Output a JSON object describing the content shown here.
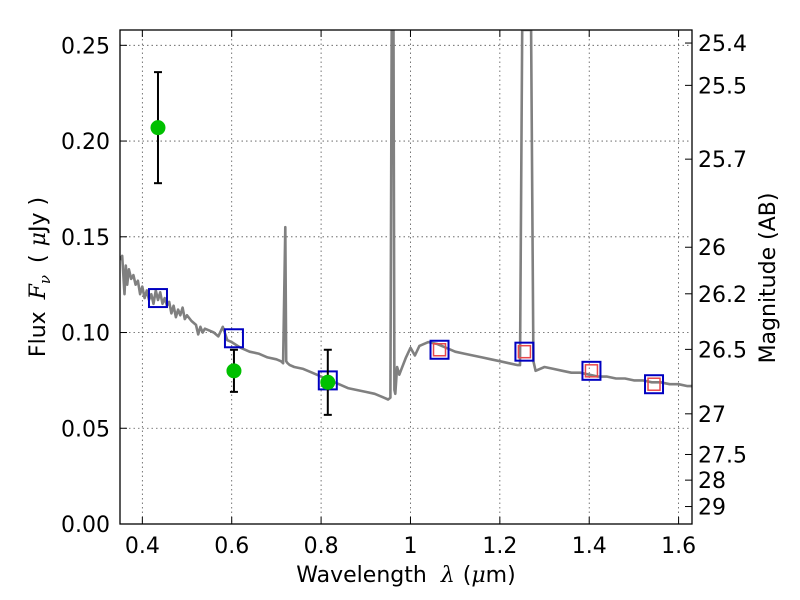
{
  "chart_data": {
    "type": "scatter",
    "title": "",
    "xlabel": {
      "text": "Wavelength",
      "symbol": "λ",
      "unit_open": "(",
      "unit_mu": "μ",
      "unit_rest": "m)"
    },
    "ylabel": {
      "text": "Flux",
      "symbol": "F",
      "subscript": "ν",
      "unit_open": "(",
      "unit_mu": "μ",
      "unit_rest": "Jy )"
    },
    "y2label": "Magnitude (AB)",
    "xlim": [
      0.35,
      1.63
    ],
    "ylim": [
      0.0,
      0.258
    ],
    "x_ticks": [
      0.4,
      0.6,
      0.8,
      1.0,
      1.2,
      1.4,
      1.6
    ],
    "x_tick_labels": [
      "0.4",
      "0.6",
      "0.8",
      "1",
      "1.2",
      "1.4",
      "1.6"
    ],
    "y_ticks": [
      0.0,
      0.05,
      0.1,
      0.15,
      0.2,
      0.25
    ],
    "y_tick_labels": [
      "0.00",
      "0.05",
      "0.10",
      "0.15",
      "0.20",
      "0.25"
    ],
    "y2_ticks": [
      25.4,
      25.5,
      25.7,
      26,
      26.2,
      26.5,
      27,
      27.5,
      28,
      29
    ],
    "y2_tick_labels": [
      "25.4",
      "25.5",
      "25.7",
      "26",
      "26.2",
      "26.5",
      "27",
      "27.5",
      "28",
      "29"
    ],
    "grid": true,
    "colors": {
      "model": "#808080",
      "observed": "#00c000",
      "errorbar": "#000000",
      "synthetic": "#0000c0",
      "synthetic_inner": "#e8484a",
      "axis": "#000000",
      "grid": "#555555"
    },
    "series": [
      {
        "type": "line",
        "x": [
          0.35,
          0.355,
          0.36,
          0.363,
          0.366,
          0.37,
          0.375,
          0.38,
          0.385,
          0.39,
          0.395,
          0.4,
          0.405,
          0.41,
          0.415,
          0.42,
          0.425,
          0.43,
          0.435,
          0.44,
          0.445,
          0.45,
          0.455,
          0.46,
          0.465,
          0.47,
          0.475,
          0.48,
          0.485,
          0.49,
          0.495,
          0.5,
          0.51,
          0.52,
          0.525,
          0.53,
          0.535,
          0.54,
          0.55,
          0.56,
          0.57,
          0.58,
          0.59,
          0.6,
          0.62,
          0.64,
          0.66,
          0.68,
          0.7,
          0.71,
          0.715,
          0.72,
          0.722,
          0.725,
          0.73,
          0.74,
          0.76,
          0.78,
          0.8,
          0.82,
          0.84,
          0.86,
          0.88,
          0.9,
          0.92,
          0.93,
          0.94,
          0.95,
          0.955,
          0.958,
          0.96,
          0.962,
          0.964,
          0.966,
          0.968,
          0.97,
          0.975,
          0.98,
          0.99,
          1.0,
          1.01,
          1.02,
          1.04,
          1.06,
          1.08,
          1.1,
          1.12,
          1.14,
          1.16,
          1.18,
          1.2,
          1.22,
          1.24,
          1.245,
          1.25,
          1.255,
          1.26,
          1.265,
          1.27,
          1.275,
          1.28,
          1.3,
          1.32,
          1.34,
          1.36,
          1.38,
          1.4,
          1.42,
          1.44,
          1.46,
          1.48,
          1.5,
          1.52,
          1.54,
          1.56,
          1.58,
          1.6,
          1.62,
          1.63
        ],
        "y": [
          0.138,
          0.14,
          0.12,
          0.135,
          0.125,
          0.133,
          0.128,
          0.13,
          0.125,
          0.127,
          0.12,
          0.124,
          0.118,
          0.122,
          0.117,
          0.12,
          0.115,
          0.122,
          0.117,
          0.121,
          0.115,
          0.118,
          0.114,
          0.116,
          0.11,
          0.114,
          0.108,
          0.112,
          0.109,
          0.113,
          0.107,
          0.109,
          0.106,
          0.104,
          0.099,
          0.103,
          0.1,
          0.102,
          0.101,
          0.1,
          0.098,
          0.103,
          0.096,
          0.095,
          0.092,
          0.09,
          0.089,
          0.087,
          0.086,
          0.085,
          0.084,
          0.155,
          0.085,
          0.084,
          0.083,
          0.082,
          0.081,
          0.079,
          0.077,
          0.075,
          0.073,
          0.071,
          0.07,
          0.069,
          0.068,
          0.067,
          0.066,
          0.065,
          0.066,
          0.258,
          0.258,
          0.258,
          0.07,
          0.068,
          0.075,
          0.082,
          0.078,
          0.081,
          0.087,
          0.092,
          0.088,
          0.093,
          0.095,
          0.094,
          0.092,
          0.09,
          0.089,
          0.088,
          0.087,
          0.086,
          0.085,
          0.084,
          0.083,
          0.083,
          0.258,
          0.258,
          0.258,
          0.258,
          0.258,
          0.085,
          0.08,
          0.082,
          0.081,
          0.08,
          0.079,
          0.079,
          0.078,
          0.077,
          0.077,
          0.076,
          0.076,
          0.075,
          0.075,
          0.074,
          0.074,
          0.073,
          0.073,
          0.072,
          0.072
        ]
      },
      {
        "type": "errorbar",
        "x": [
          0.435,
          0.605,
          0.815
        ],
        "y": [
          0.207,
          0.08,
          0.074
        ],
        "yerr": [
          0.029,
          0.011,
          0.017
        ]
      },
      {
        "type": "scatter",
        "x": [
          0.435,
          0.605,
          0.815,
          1.065,
          1.255,
          1.405,
          1.545
        ],
        "y": [
          0.118,
          0.097,
          0.075,
          0.091,
          0.09,
          0.08,
          0.073
        ]
      }
    ]
  }
}
